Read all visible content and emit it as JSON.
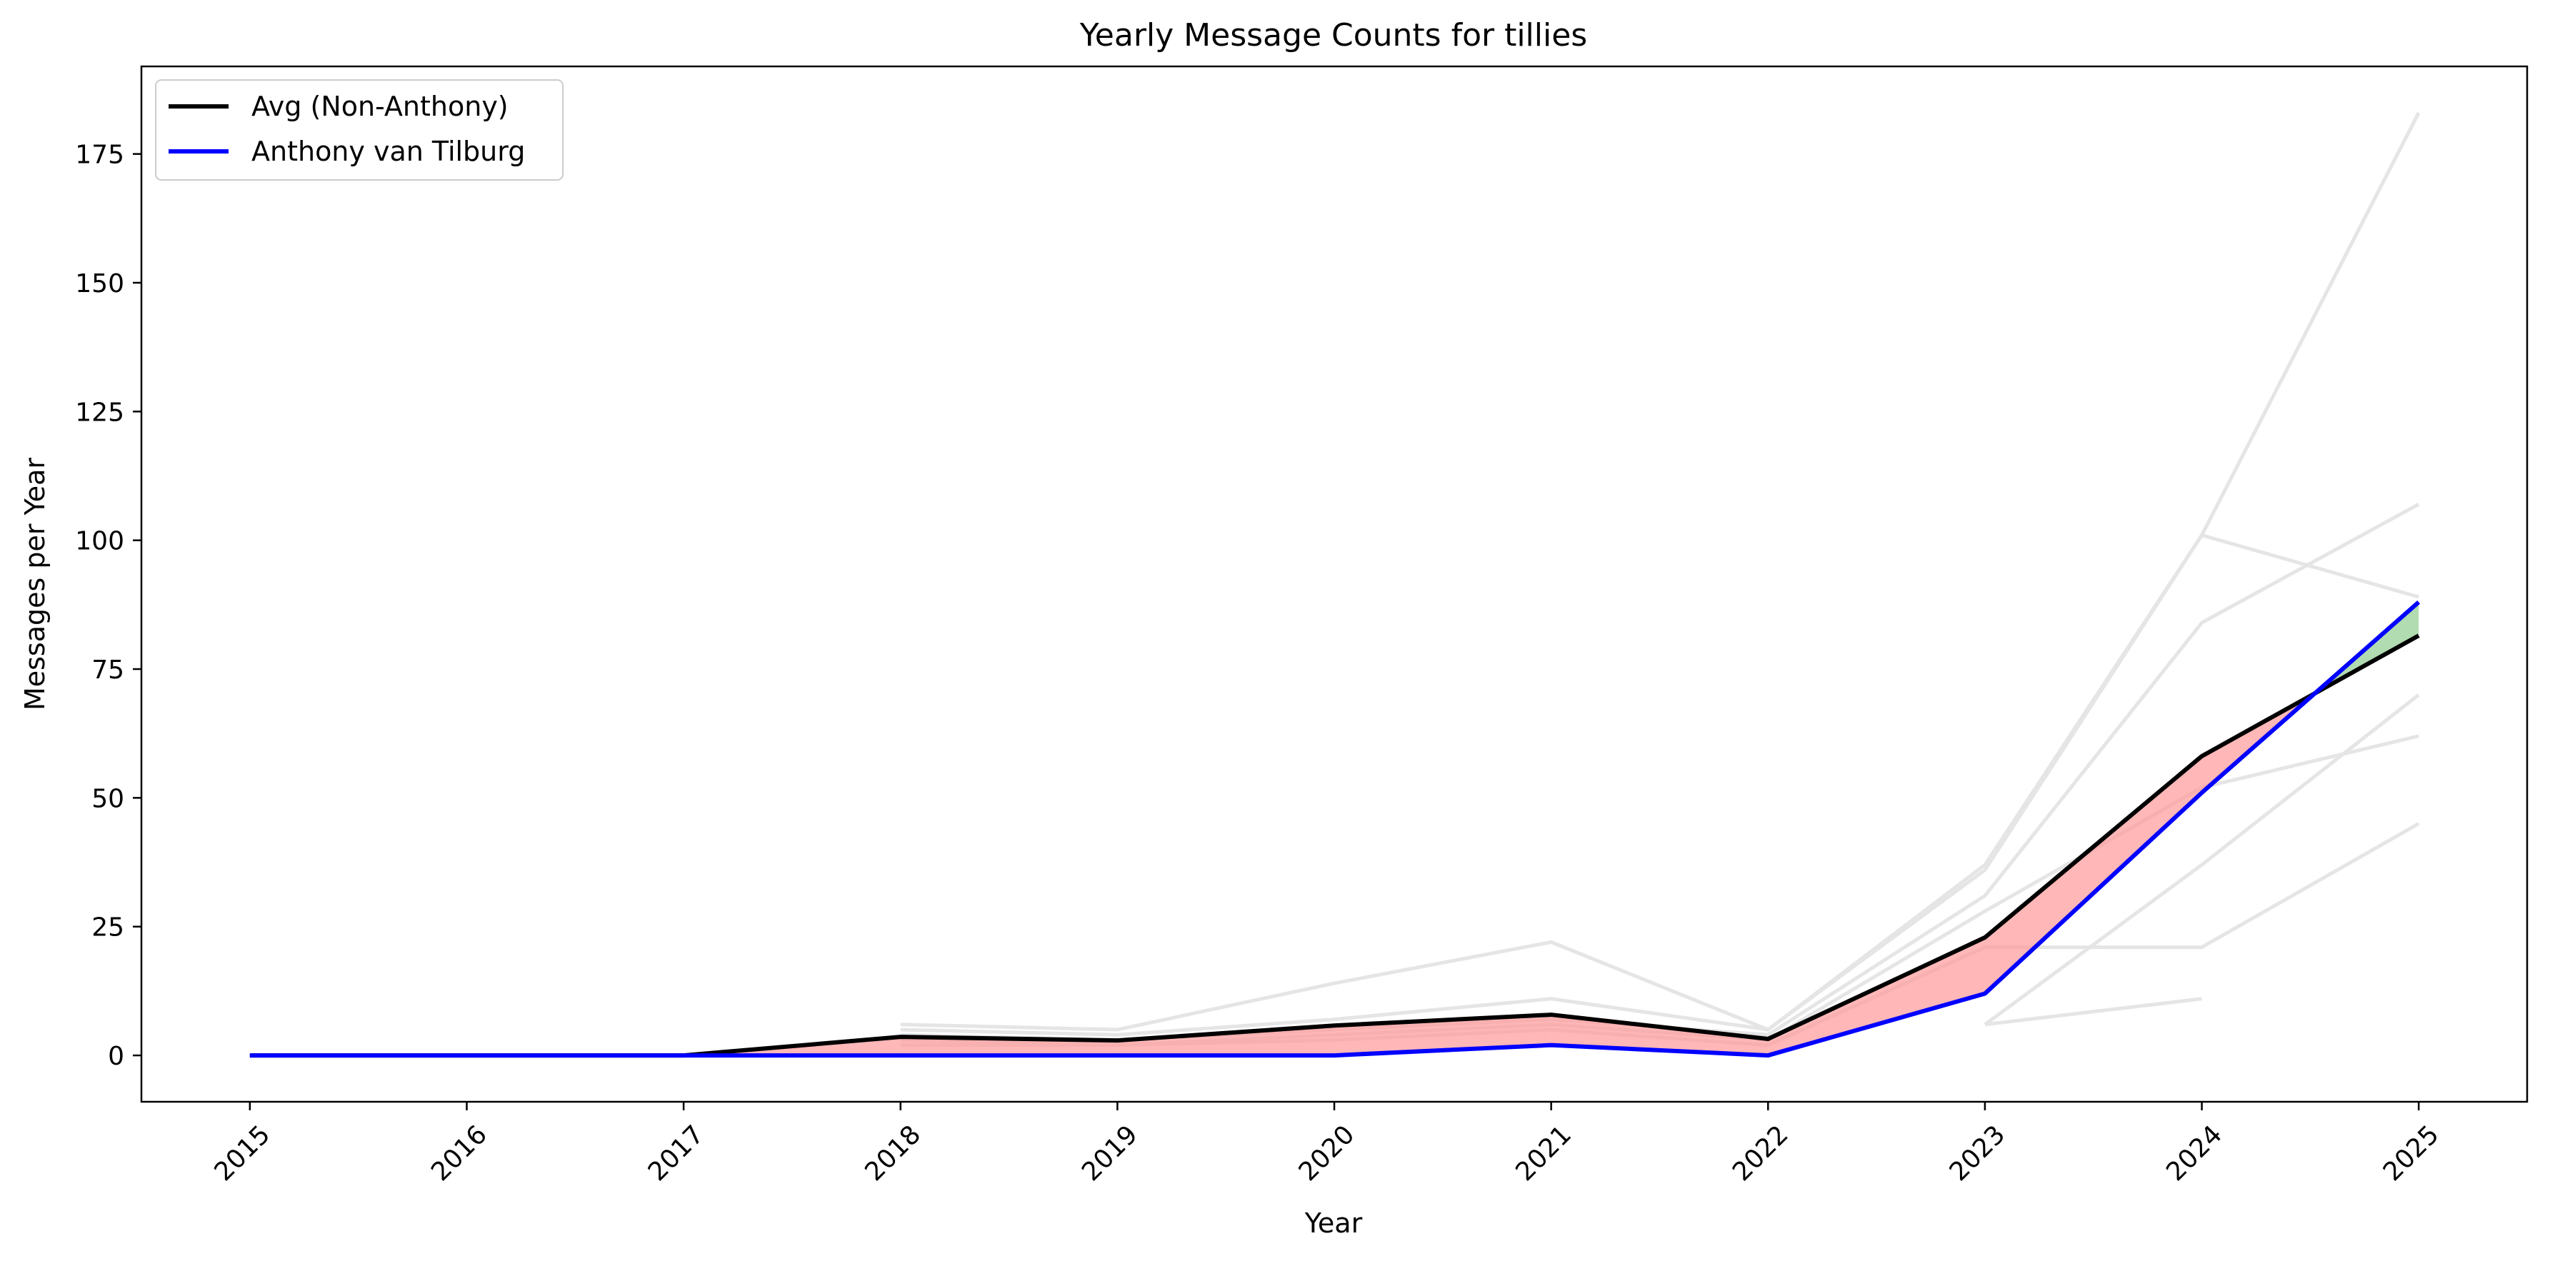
{
  "chart_data": {
    "type": "line",
    "title": "Yearly Message Counts for tillies",
    "xlabel": "Year",
    "ylabel": "Messages per Year",
    "x": [
      2015,
      2016,
      2017,
      2018,
      2019,
      2020,
      2021,
      2022,
      2023,
      2024,
      2025
    ],
    "x_tick_labels": [
      "2015",
      "2016",
      "2017",
      "2018",
      "2019",
      "2020",
      "2021",
      "2022",
      "2023",
      "2024",
      "2025"
    ],
    "x_tick_rotation": 45,
    "xlim": [
      2014.5,
      2025.5
    ],
    "ylim": [
      -9,
      192
    ],
    "y_ticks": [
      0,
      25,
      50,
      75,
      100,
      125,
      150,
      175
    ],
    "y_tick_labels": [
      "0",
      "25",
      "50",
      "75",
      "100",
      "125",
      "150",
      "175"
    ],
    "grid": false,
    "legend_position": "top-left",
    "series": [
      {
        "name": "Avg (Non-Anthony)",
        "color": "#000000",
        "values": [
          0,
          0,
          0,
          3.6,
          2.9,
          5.8,
          7.9,
          3.2,
          22.9,
          58.1,
          81.5
        ]
      },
      {
        "name": "Anthony van Tilburg",
        "color": "#0000ff",
        "values": [
          0,
          0,
          0,
          0,
          0,
          0,
          2,
          0,
          12,
          51,
          88
        ]
      }
    ],
    "fill_between": {
      "below_color": "#ff9999",
      "above_color": "#90cc90",
      "opacity": 0.7
    },
    "background_series": {
      "color": "#e5e5e5",
      "lines": [
        {
          "x": [
            2018,
            2019,
            2020,
            2021,
            2022,
            2023,
            2024,
            2025
          ],
          "values": [
            6,
            5,
            14,
            22,
            5,
            37,
            101,
            183
          ]
        },
        {
          "x": [
            2018,
            2019,
            2020,
            2021,
            2022,
            2023,
            2024,
            2025
          ],
          "values": [
            5,
            4,
            7,
            11,
            5,
            36,
            101,
            89
          ]
        },
        {
          "x": [
            2018,
            2019,
            2020,
            2021,
            2022,
            2023,
            2024,
            2025
          ],
          "values": [
            4,
            3,
            5,
            7,
            4,
            31,
            84,
            107
          ]
        },
        {
          "x": [
            2018,
            2019,
            2020,
            2021,
            2022,
            2023,
            2024,
            2025
          ],
          "values": [
            3,
            2,
            4,
            6,
            3,
            28,
            52,
            62
          ]
        },
        {
          "x": [
            2018,
            2019,
            2020,
            2021,
            2022,
            2023,
            2024,
            2025
          ],
          "values": [
            2,
            2,
            3,
            5,
            2,
            21,
            21,
            45
          ]
        },
        {
          "x": [
            2023,
            2024,
            2025
          ],
          "values": [
            6,
            37,
            70
          ]
        },
        {
          "x": [
            2023,
            2024
          ],
          "values": [
            6,
            11
          ]
        }
      ]
    }
  }
}
